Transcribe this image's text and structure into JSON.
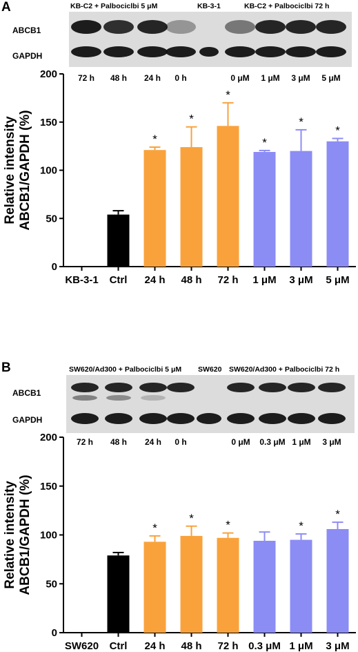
{
  "panels": [
    {
      "letter": "A",
      "blot": {
        "headers": [
          "KB-C2 + Palbociclbi 5 μM",
          "KB-3-1",
          "KB-C2 + Palbociclbi 72 h"
        ],
        "row_labels": [
          "ABCB1",
          "GAPDH"
        ],
        "lane_labels": [
          "72 h",
          "48 h",
          "24 h",
          "0 h",
          "0 μM",
          "1 μM",
          "3 μM",
          "5 μM"
        ]
      }
    },
    {
      "letter": "B",
      "blot": {
        "headers": [
          "SW620/Ad300 + Palbociclbi 5 μM",
          "SW620",
          "SW620/Ad300 + Palbociclbi 72 h"
        ],
        "row_labels": [
          "ABCB1",
          "GAPDH"
        ],
        "lane_labels": [
          "72 h",
          "48 h",
          "24 h",
          "0 h",
          "0 μM",
          "0.3 μM",
          "1 μM",
          "3 μM"
        ]
      }
    }
  ],
  "chart_data": [
    {
      "type": "bar",
      "ylabel": "Relative intensity ABCB1/GAPDH (%)",
      "ylim": [
        0,
        200
      ],
      "yticks": [
        0,
        50,
        100,
        150,
        200
      ],
      "categories": [
        "KB-3-1",
        "Ctrl",
        "24 h",
        "48 h",
        "72 h",
        "1 μM",
        "3 μM",
        "5 μM"
      ],
      "values": [
        0,
        54,
        121,
        124,
        146,
        119,
        120,
        130
      ],
      "errors": [
        0,
        4,
        3,
        21,
        24,
        1.5,
        22,
        3
      ],
      "significant": [
        "",
        "",
        "*",
        "*",
        "*",
        "*",
        "*",
        "*"
      ],
      "colors": [
        "#000000",
        "#000000",
        "#F9A23C",
        "#F9A23C",
        "#F9A23C",
        "#8C8CF5",
        "#8C8CF5",
        "#8C8CF5"
      ]
    },
    {
      "type": "bar",
      "ylabel": "Relative intensity ABCB1/GAPDH (%)",
      "ylim": [
        0,
        200
      ],
      "yticks": [
        0,
        50,
        100,
        150,
        200
      ],
      "categories": [
        "SW620",
        "Ctrl",
        "24 h",
        "48 h",
        "72 h",
        "0.3 μM",
        "1 μM",
        "3 μM"
      ],
      "values": [
        0,
        79,
        93,
        99,
        97,
        94,
        95,
        106
      ],
      "errors": [
        0,
        3,
        6,
        10,
        5,
        9,
        6,
        7
      ],
      "significant": [
        "",
        "",
        "*",
        "*",
        "*",
        "",
        "*",
        "*"
      ],
      "colors": [
        "#000000",
        "#000000",
        "#F9A23C",
        "#F9A23C",
        "#F9A23C",
        "#8C8CF5",
        "#8C8CF5",
        "#8C8CF5"
      ]
    }
  ]
}
